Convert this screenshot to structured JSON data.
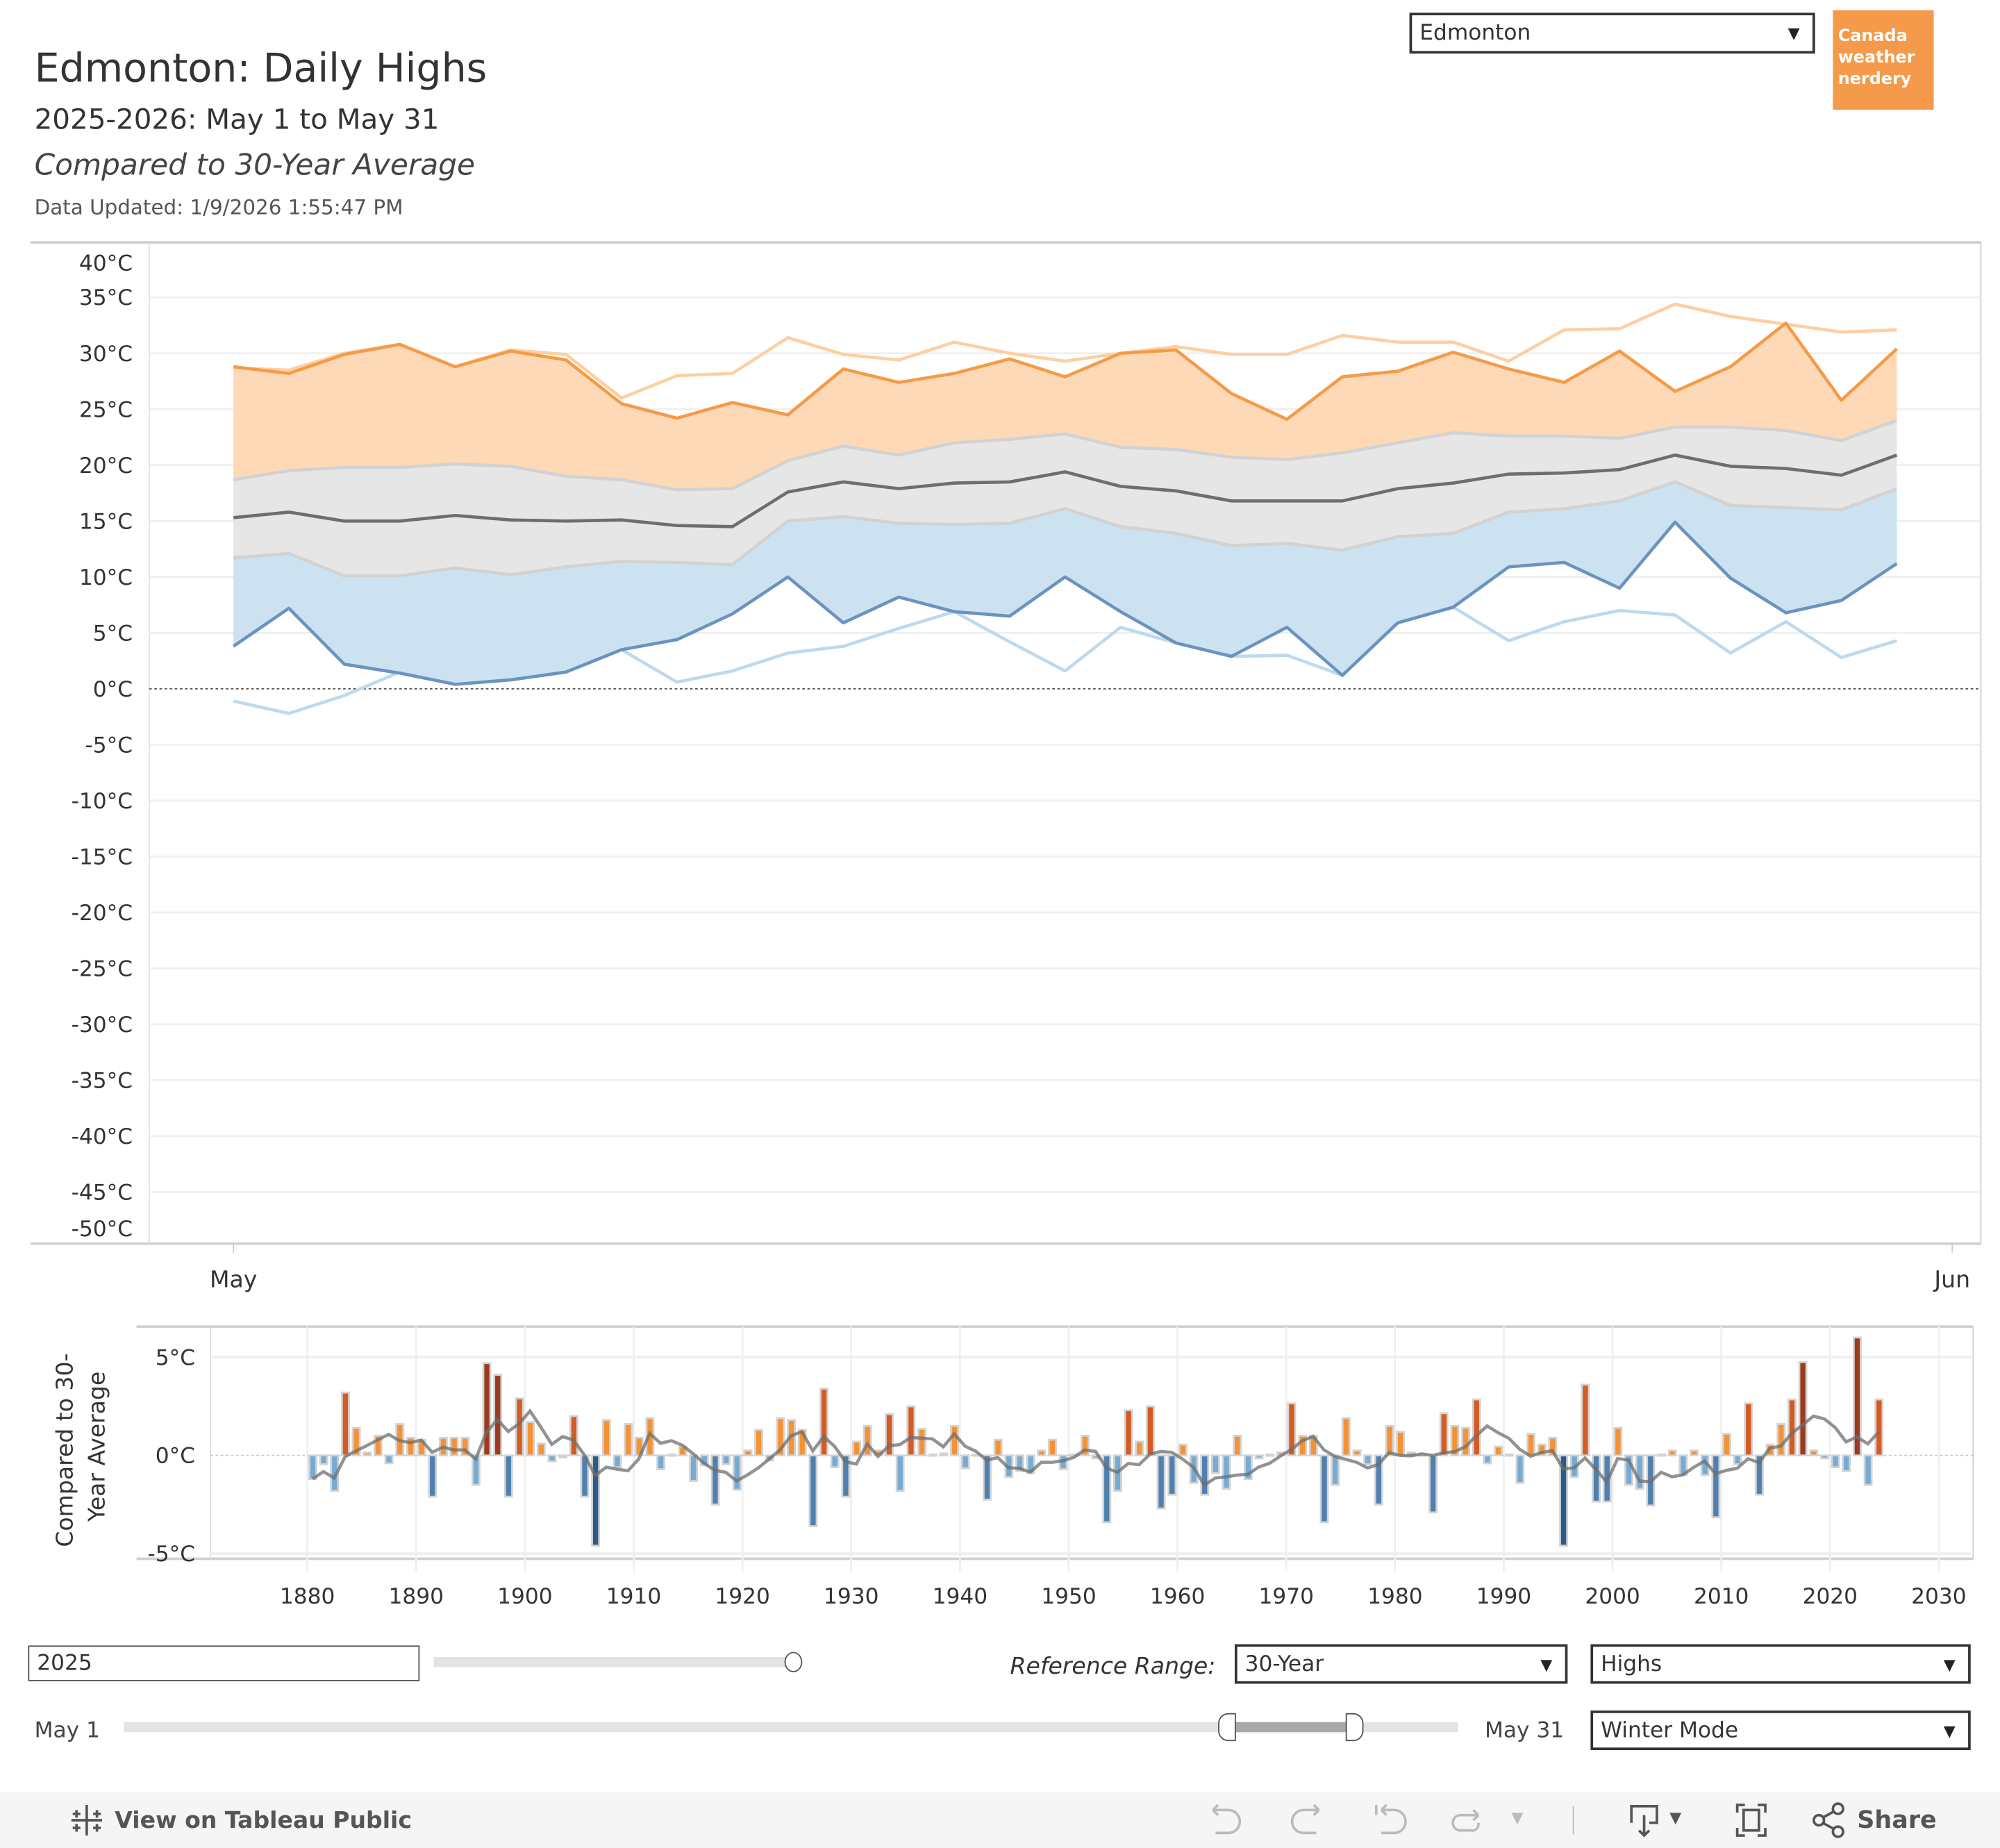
{
  "header": {
    "title": "Edmonton: Daily Highs",
    "subtitle": "2025-2026: May 1 to May 31",
    "comparison": "Compared to 30-Year Average",
    "data_updated": "Data Updated: 1/9/2026 1:55:47 PM",
    "city_select": "Edmonton",
    "logo_text": "Canada weather nerdery"
  },
  "colors": {
    "brand": "#f5994a",
    "warm_fill": "#fdd9b7",
    "normal_fill": "#e6e6e6",
    "cool_fill": "#cde2f1"
  },
  "chart_data": [
    {
      "type": "area",
      "ylim": [
        -50,
        40
      ],
      "y_tick_values": [
        40,
        35,
        30,
        25,
        20,
        15,
        10,
        5,
        0,
        -5,
        -10,
        -15,
        -20,
        -25,
        -30,
        -35,
        -40,
        -45,
        -50
      ],
      "y_tick_labels": [
        "40°C",
        "35°C",
        "30°C",
        "25°C",
        "20°C",
        "15°C",
        "10°C",
        "5°C",
        "0°C",
        "-5°C",
        "-10°C",
        "-15°C",
        "-20°C",
        "-25°C",
        "-30°C",
        "-35°C",
        "-40°C",
        "-45°C",
        "-50°C"
      ],
      "x_tick_labels": [
        "May",
        "Jun"
      ],
      "days": [
        1,
        2,
        3,
        4,
        5,
        6,
        7,
        8,
        9,
        10,
        11,
        12,
        13,
        14,
        15,
        16,
        17,
        18,
        19,
        20,
        21,
        22,
        23,
        24,
        25,
        26,
        27,
        28,
        29,
        30,
        31
      ],
      "grid": true,
      "zero_line": "dotted",
      "series": [
        {
          "color": "#fdcfa2",
          "values": [
            28.7,
            28.5,
            30,
            30.8,
            28.8,
            30.3,
            29.9,
            26,
            28,
            28.2,
            31.4,
            29.9,
            29.4,
            31,
            30,
            29.3,
            30,
            30.6,
            29.9,
            29.9,
            31.6,
            31,
            31,
            29.3,
            32.1,
            32.2,
            34.4,
            33.3,
            32.6,
            31.9,
            32.1
          ]
        },
        {
          "color": "#f59b47",
          "values": [
            28.8,
            28.2,
            29.9,
            30.8,
            28.8,
            30.2,
            29.4,
            25.5,
            24.2,
            25.6,
            24.5,
            28.6,
            27.4,
            28.2,
            29.5,
            27.9,
            30,
            30.3,
            26.4,
            24.1,
            27.9,
            28.4,
            30.1,
            28.6,
            27.4,
            30.2,
            26.6,
            28.8,
            32.7,
            25.8,
            30.4
          ]
        },
        {
          "color": "#d2d2d2",
          "values": [
            18.7,
            19.5,
            19.8,
            19.8,
            20.1,
            19.9,
            19,
            18.7,
            17.8,
            17.9,
            20.4,
            21.7,
            20.9,
            22,
            22.3,
            22.8,
            21.6,
            21.4,
            20.7,
            20.5,
            21.1,
            22,
            22.9,
            22.6,
            22.6,
            22.4,
            23.4,
            23.4,
            23.1,
            22.2,
            24
          ]
        },
        {
          "color": "#6e6e6e",
          "values": [
            15.3,
            15.8,
            15,
            15,
            15.5,
            15.1,
            15,
            15.1,
            14.6,
            14.5,
            17.6,
            18.5,
            17.9,
            18.4,
            18.5,
            19.4,
            18.1,
            17.7,
            16.8,
            16.8,
            16.8,
            17.9,
            18.4,
            19.2,
            19.3,
            19.6,
            20.9,
            19.9,
            19.7,
            19.1,
            20.9
          ]
        },
        {
          "color": "#d2d2d2",
          "values": [
            11.7,
            12.1,
            10.1,
            10.1,
            10.8,
            10.2,
            10.9,
            11.4,
            11.3,
            11.1,
            15,
            15.4,
            14.8,
            14.7,
            14.8,
            16.1,
            14.5,
            13.9,
            12.8,
            13,
            12.4,
            13.6,
            13.9,
            15.8,
            16.1,
            16.8,
            18.5,
            16.4,
            16.2,
            16,
            17.9
          ]
        },
        {
          "color": "#6b93bf",
          "values": [
            3.8,
            7.2,
            2.2,
            1.4,
            0.4,
            0.8,
            1.5,
            3.5,
            4.4,
            6.7,
            10,
            5.9,
            8.2,
            6.9,
            6.5,
            10,
            6.9,
            4.1,
            2.9,
            5.5,
            1.2,
            5.9,
            7.3,
            10.9,
            11.3,
            9,
            14.9,
            9.9,
            6.8,
            7.9,
            11.2
          ]
        },
        {
          "color": "#bdd9ee",
          "values": [
            -1.1,
            -2.2,
            -0.6,
            1.5,
            0.4,
            0.8,
            1.5,
            3.5,
            0.6,
            1.6,
            3.2,
            3.8,
            5.4,
            6.9,
            4.2,
            1.6,
            5.5,
            4.1,
            2.9,
            3,
            1.2,
            5.9,
            7.3,
            4.3,
            6,
            7,
            6.6,
            3.2,
            6,
            2.8,
            4.3
          ]
        }
      ]
    },
    {
      "type": "bar",
      "ylabel": "Compared to 30-Year Average",
      "ylim": [
        -5.5,
        6.3
      ],
      "y_tick_values": [
        5,
        0,
        -5
      ],
      "y_tick_labels": [
        "5°C",
        "0°C",
        "-5°C"
      ],
      "x_tick_labels": [
        "1880",
        "1890",
        "1900",
        "1910",
        "1920",
        "1930",
        "1940",
        "1950",
        "1960",
        "1970",
        "1980",
        "1990",
        "2000",
        "2010",
        "2020",
        "2030"
      ],
      "years_start": 1880,
      "values": [
        -1.2,
        -0.45,
        -1.8,
        3.2,
        1.4,
        0.15,
        1.0,
        -0.4,
        1.6,
        0.9,
        0.8,
        -2.1,
        0.9,
        0.9,
        0.9,
        -1.5,
        4.7,
        4.1,
        -2.1,
        2.9,
        1.7,
        0.6,
        -0.3,
        -0.1,
        2.0,
        -2.1,
        -4.6,
        1.8,
        -0.6,
        1.6,
        0.9,
        1.9,
        -0.7,
        0.05,
        0.45,
        -1.3,
        -0.5,
        -2.5,
        -0.45,
        -1.75,
        0.25,
        1.3,
        -0.25,
        1.9,
        1.8,
        1.3,
        -3.6,
        3.4,
        -0.6,
        -2.1,
        0.7,
        1.5,
        0.25,
        2.1,
        -1.8,
        2.5,
        1.35,
        0.05,
        0.1,
        1.5,
        -0.65,
        0.05,
        -2.25,
        0.8,
        -1.1,
        -0.8,
        -0.9,
        0.25,
        0.8,
        -0.7,
        0.05,
        1.0,
        -0.15,
        -3.4,
        -1.8,
        2.3,
        0.7,
        2.5,
        -2.7,
        -2.0,
        0.55,
        -1.4,
        -2.0,
        -0.9,
        -1.7,
        1.0,
        -1.2,
        -0.15,
        0.05,
        0.15,
        2.65,
        1.0,
        1.0,
        -3.4,
        -1.5,
        1.9,
        0.25,
        -0.45,
        -2.5,
        1.5,
        1.2,
        0.15,
        0.05,
        -2.9,
        2.15,
        1.5,
        1.4,
        2.85,
        -0.4,
        0.45,
        0.05,
        -1.4,
        1.1,
        0.55,
        0.9,
        -4.6,
        -1.1,
        3.6,
        -2.35,
        -2.35,
        1.4,
        -1.5,
        -1.7,
        -2.55,
        0.05,
        0.25,
        -1.0,
        0.25,
        -1.0,
        -3.15,
        1.1,
        -0.45,
        2.65,
        -2.0,
        0.55,
        1.6,
        2.85,
        4.75,
        0.25,
        -0.15,
        -0.6,
        -0.8,
        6.0,
        -1.5,
        2.85
      ],
      "bar_colors": {
        "hot": "#9c3a1f",
        "warm": "#d45b22",
        "mild": "#f59233",
        "cool": "#75acd6",
        "cold": "#4e81b0",
        "frigid": "#2a5b8a"
      },
      "trend_color": "#6e6e6e",
      "grid": true
    }
  ],
  "controls": {
    "year_value": "2025",
    "year_slider_fraction": 1.0,
    "reference_label": "Reference Range:",
    "reference_select": "30-Year",
    "measure_select": "Highs",
    "date_start_label": "May 1",
    "date_end_label": "May 31",
    "date_range_fraction": [
      0.83,
      0.92
    ],
    "mode_select": "Winter Mode"
  },
  "footer": {
    "view_label": "View on Tableau Public",
    "share_label": "Share"
  }
}
